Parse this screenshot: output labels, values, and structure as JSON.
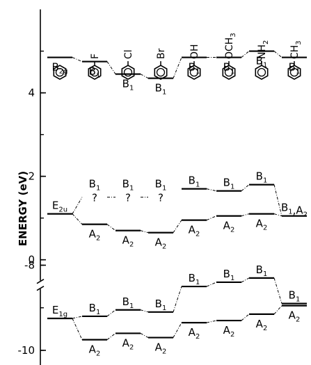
{
  "chart_data": {
    "type": "energy-level diagram",
    "ylabel": "ENERGY (eV)",
    "upper_axis": {
      "ticks": [
        0,
        2,
        4
      ],
      "tick_labels": [
        "0",
        "2",
        "4"
      ],
      "range": [
        -0.5,
        6
      ]
    },
    "lower_axis": {
      "ticks": [
        -8,
        -10
      ],
      "tick_labels": [
        "-8",
        "-10"
      ],
      "range": [
        -10.6,
        -7.2
      ]
    },
    "compounds": [
      {
        "substituent": "",
        "sub_html": ""
      },
      {
        "substituent": "F",
        "sub_html": "F"
      },
      {
        "substituent": "Cl",
        "sub_html": "Cl"
      },
      {
        "substituent": "Br",
        "sub_html": "Br"
      },
      {
        "substituent": "OH",
        "sub_html": "OH"
      },
      {
        "substituent": "OCH3",
        "sub_html": "OCH3"
      },
      {
        "substituent": "NH2",
        "sub_html": "NH2"
      },
      {
        "substituent": "CH3",
        "sub_html": "CH3"
      }
    ],
    "levels": [
      {
        "id": "b2g-0",
        "compound": 0,
        "energy": 4.85,
        "label": "B2g",
        "label_pos": "below",
        "style": "solid"
      },
      {
        "id": "b2g-1",
        "compound": 1,
        "energy": 4.75,
        "label": "B1",
        "label_pos": "below",
        "style": "solid"
      },
      {
        "id": "b2g-2",
        "compound": 2,
        "energy": 4.45,
        "label": "B1",
        "label_pos": "below",
        "style": "solid"
      },
      {
        "id": "b2g-3",
        "compound": 3,
        "energy": 4.35,
        "label": "B1",
        "label_pos": "below",
        "style": "solid"
      },
      {
        "id": "b2g-4",
        "compound": 4,
        "energy": 4.85,
        "label": "B1",
        "label_pos": "below",
        "style": "solid"
      },
      {
        "id": "b2g-5",
        "compound": 5,
        "energy": 4.85,
        "label": "B1",
        "label_pos": "below",
        "style": "solid"
      },
      {
        "id": "b2g-6",
        "compound": 6,
        "energy": 5.0,
        "label": "B1",
        "label_pos": "below",
        "style": "solid"
      },
      {
        "id": "b2g-7",
        "compound": 7,
        "energy": 4.85,
        "label": "B1",
        "label_pos": "below",
        "style": "solid"
      },
      {
        "id": "e2u-0",
        "compound": 0,
        "energy": 1.1,
        "label": "E2u",
        "label_pos": "above",
        "style": "solid"
      },
      {
        "id": "b1u-1",
        "compound": 1,
        "energy": 1.5,
        "label": "B1",
        "label_pos": "above",
        "style": "none",
        "question": "?"
      },
      {
        "id": "b1u-2",
        "compound": 2,
        "energy": 1.5,
        "label": "B1",
        "label_pos": "above",
        "style": "none",
        "question": "?"
      },
      {
        "id": "b1u-3",
        "compound": 3,
        "energy": 1.5,
        "label": "B1",
        "label_pos": "above",
        "style": "none",
        "question": "?"
      },
      {
        "id": "b1u-4",
        "compound": 4,
        "energy": 1.7,
        "label": "B1",
        "label_pos": "above",
        "style": "solid"
      },
      {
        "id": "b1u-5",
        "compound": 5,
        "energy": 1.65,
        "label": "B1",
        "label_pos": "above",
        "style": "solid"
      },
      {
        "id": "b1u-6",
        "compound": 6,
        "energy": 1.8,
        "label": "B1",
        "label_pos": "above",
        "style": "solid"
      },
      {
        "id": "a2u-1",
        "compound": 1,
        "energy": 0.85,
        "label": "A2",
        "label_pos": "below",
        "style": "solid"
      },
      {
        "id": "a2u-2",
        "compound": 2,
        "energy": 0.7,
        "label": "A2",
        "label_pos": "below",
        "style": "solid"
      },
      {
        "id": "a2u-3",
        "compound": 3,
        "energy": 0.65,
        "label": "A2",
        "label_pos": "below",
        "style": "solid"
      },
      {
        "id": "a2u-4",
        "compound": 4,
        "energy": 0.95,
        "label": "A2",
        "label_pos": "below",
        "style": "solid"
      },
      {
        "id": "a2u-5",
        "compound": 5,
        "energy": 1.05,
        "label": "A2",
        "label_pos": "below",
        "style": "solid"
      },
      {
        "id": "a2u-6",
        "compound": 6,
        "energy": 1.1,
        "label": "A2",
        "label_pos": "below",
        "style": "solid"
      },
      {
        "id": "ba-7",
        "compound": 7,
        "energy": 1.05,
        "label": "B1,A2",
        "label_pos": "above",
        "style": "solid"
      },
      {
        "id": "e1g-0",
        "compound": 0,
        "energy": -9.25,
        "label": "E1g",
        "label_pos": "above",
        "style": "solid"
      },
      {
        "id": "b1l-1",
        "compound": 1,
        "energy": -9.2,
        "label": "B1",
        "label_pos": "above",
        "style": "solid"
      },
      {
        "id": "b1l-2",
        "compound": 2,
        "energy": -9.05,
        "label": "B1",
        "label_pos": "above",
        "style": "solid"
      },
      {
        "id": "b1l-3",
        "compound": 3,
        "energy": -9.1,
        "label": "B1",
        "label_pos": "above",
        "style": "solid"
      },
      {
        "id": "b1l-4",
        "compound": 4,
        "energy": -8.5,
        "label": "B1",
        "label_pos": "above",
        "style": "solid"
      },
      {
        "id": "b1l-5",
        "compound": 5,
        "energy": -8.4,
        "label": "B1",
        "label_pos": "above",
        "style": "solid"
      },
      {
        "id": "b1l-6",
        "compound": 6,
        "energy": -8.3,
        "label": "B1",
        "label_pos": "above",
        "style": "solid"
      },
      {
        "id": "b1l-7",
        "compound": 7,
        "energy": -8.9,
        "label": "B1",
        "label_pos": "above",
        "style": "solid"
      },
      {
        "id": "a2l-1",
        "compound": 1,
        "energy": -9.75,
        "label": "A2",
        "label_pos": "below",
        "style": "solid"
      },
      {
        "id": "a2l-2",
        "compound": 2,
        "energy": -9.6,
        "label": "A2",
        "label_pos": "below",
        "style": "solid"
      },
      {
        "id": "a2l-3",
        "compound": 3,
        "energy": -9.7,
        "label": "A2",
        "label_pos": "below",
        "style": "solid"
      },
      {
        "id": "a2l-4",
        "compound": 4,
        "energy": -9.35,
        "label": "A2",
        "label_pos": "below",
        "style": "solid"
      },
      {
        "id": "a2l-5",
        "compound": 5,
        "energy": -9.3,
        "label": "A2",
        "label_pos": "below",
        "style": "solid"
      },
      {
        "id": "a2l-6",
        "compound": 6,
        "energy": -9.15,
        "label": "A2",
        "label_pos": "below",
        "style": "solid"
      },
      {
        "id": "a2l-7",
        "compound": 7,
        "energy": -8.95,
        "label": "A2",
        "label_pos": "below",
        "style": "solid"
      }
    ],
    "connectors": [
      [
        "b2g-0",
        "b2g-1"
      ],
      [
        "b2g-1",
        "b2g-2"
      ],
      [
        "b2g-2",
        "b2g-3"
      ],
      [
        "b2g-3",
        "b2g-4"
      ],
      [
        "b2g-4",
        "b2g-5"
      ],
      [
        "b2g-5",
        "b2g-6"
      ],
      [
        "b2g-6",
        "b2g-7"
      ],
      [
        "e2u-0",
        "b1u-1"
      ],
      [
        "b1u-1",
        "b1u-2"
      ],
      [
        "b1u-2",
        "b1u-3"
      ],
      [
        "e2u-0",
        "a2u-1"
      ],
      [
        "a2u-1",
        "a2u-2"
      ],
      [
        "a2u-2",
        "a2u-3"
      ],
      [
        "a2u-3",
        "a2u-4"
      ],
      [
        "a2u-4",
        "a2u-5"
      ],
      [
        "a2u-5",
        "a2u-6"
      ],
      [
        "a2u-6",
        "ba-7"
      ],
      [
        "b1u-4",
        "b1u-5"
      ],
      [
        "b1u-5",
        "b1u-6"
      ],
      [
        "b1u-6",
        "ba-7"
      ],
      [
        "e1g-0",
        "b1l-1"
      ],
      [
        "b1l-1",
        "b1l-2"
      ],
      [
        "b1l-2",
        "b1l-3"
      ],
      [
        "b1l-3",
        "b1l-4"
      ],
      [
        "b1l-4",
        "b1l-5"
      ],
      [
        "b1l-5",
        "b1l-6"
      ],
      [
        "b1l-6",
        "b1l-7"
      ],
      [
        "e1g-0",
        "a2l-1"
      ],
      [
        "a2l-1",
        "a2l-2"
      ],
      [
        "a2l-2",
        "a2l-3"
      ],
      [
        "a2l-3",
        "a2l-4"
      ],
      [
        "a2l-4",
        "a2l-5"
      ],
      [
        "a2l-5",
        "a2l-6"
      ],
      [
        "a2l-6",
        "a2l-7"
      ]
    ]
  }
}
